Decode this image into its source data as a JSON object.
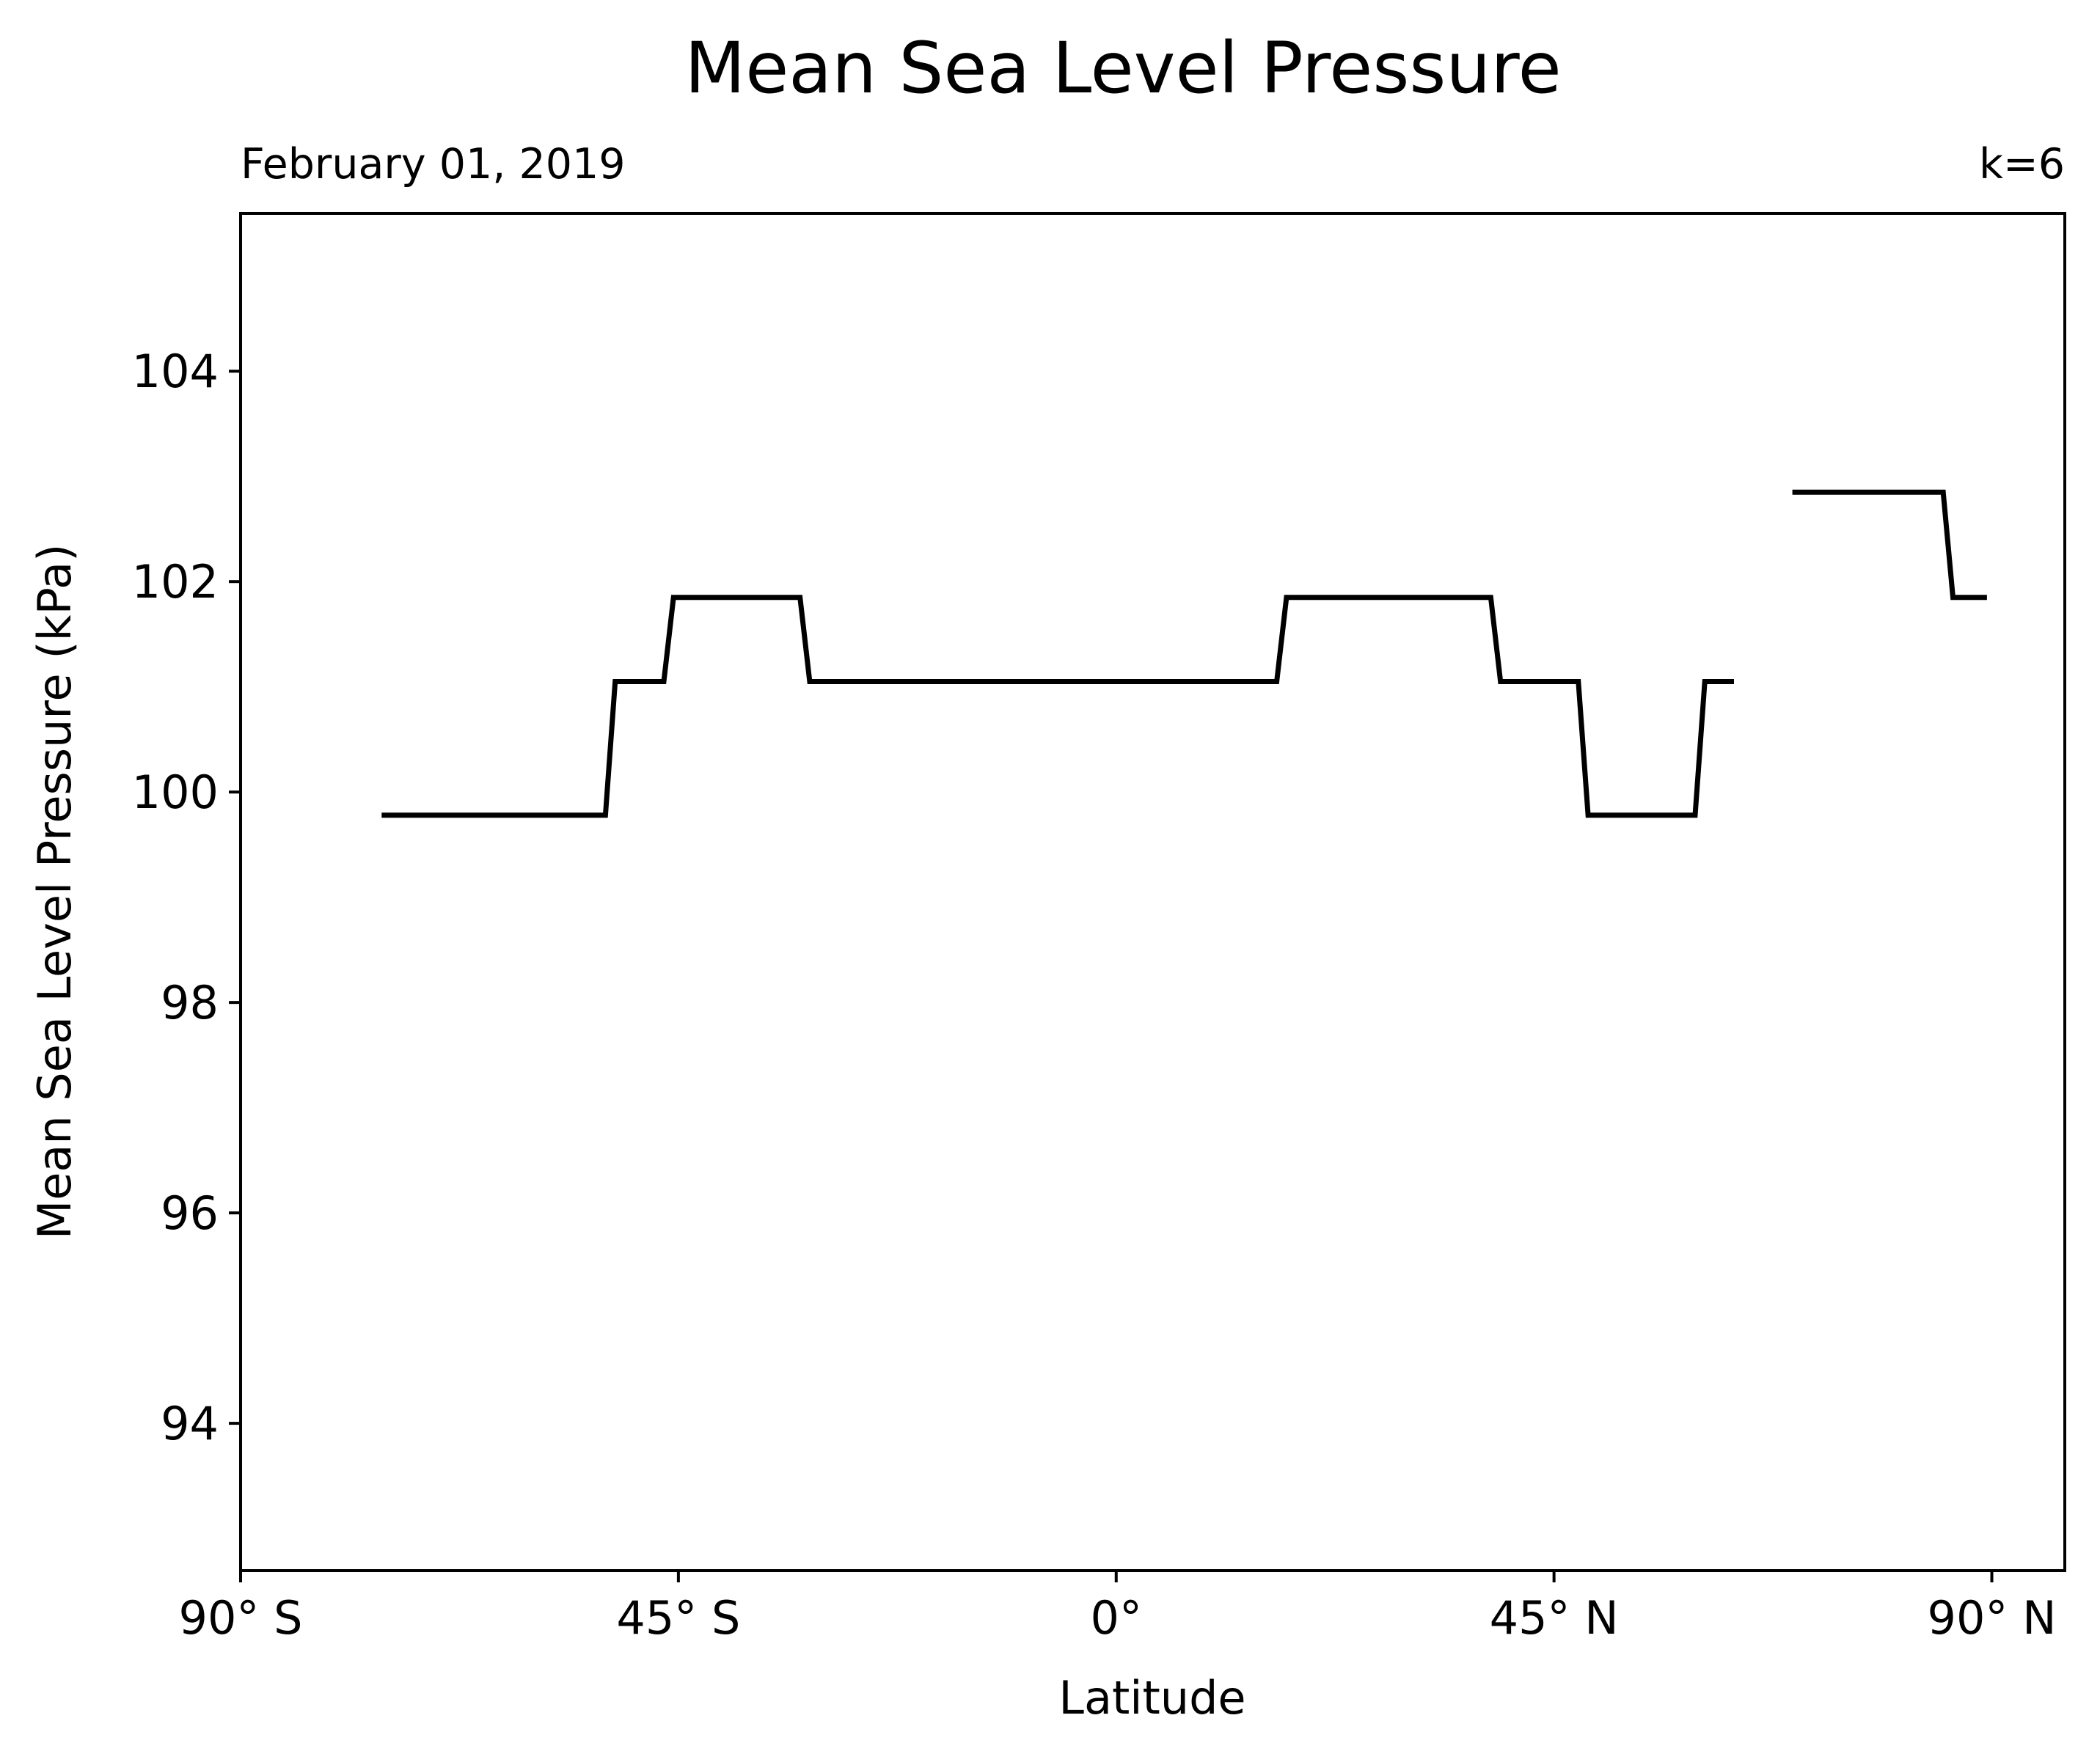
{
  "chart_data": {
    "type": "line",
    "title": "Mean Sea Level Pressure",
    "subtitle_left": "February 01, 2019",
    "subtitle_right": "k=6",
    "xlabel": "Latitude",
    "ylabel": "Mean Sea Level Pressure (kPa)",
    "xlim": [
      -90,
      97.5
    ],
    "ylim": [
      92.6,
      105.5
    ],
    "grid": false,
    "legend": "none",
    "x_ticks": [
      {
        "value": -90,
        "label": "90° S"
      },
      {
        "value": -45,
        "label": "45° S"
      },
      {
        "value": 0,
        "label": "0°"
      },
      {
        "value": 45,
        "label": "45° N"
      },
      {
        "value": 90,
        "label": "90° N"
      }
    ],
    "y_ticks": [
      {
        "value": 94,
        "label": "94"
      },
      {
        "value": 96,
        "label": "96"
      },
      {
        "value": 98,
        "label": "98"
      },
      {
        "value": 100,
        "label": "100"
      },
      {
        "value": 102,
        "label": "102"
      },
      {
        "value": 104,
        "label": "104"
      }
    ],
    "line_color": "#000000",
    "series": [
      {
        "segments": [
          [
            [
              -75.5,
              99.78
            ],
            [
              -52.5,
              99.78
            ],
            [
              -51.5,
              101.05
            ],
            [
              -46.5,
              101.05
            ],
            [
              -45.5,
              101.85
            ],
            [
              -32.5,
              101.85
            ],
            [
              -31.5,
              101.05
            ],
            [
              16.5,
              101.05
            ],
            [
              17.5,
              101.85
            ],
            [
              38.5,
              101.85
            ],
            [
              39.5,
              101.05
            ],
            [
              47.5,
              101.05
            ],
            [
              48.5,
              99.78
            ],
            [
              59.5,
              99.78
            ],
            [
              60.5,
              101.05
            ],
            [
              63.5,
              101.05
            ]
          ],
          [
            [
              69.5,
              102.85
            ],
            [
              85.0,
              102.85
            ],
            [
              86.0,
              101.85
            ],
            [
              89.5,
              101.85
            ]
          ]
        ]
      }
    ]
  }
}
